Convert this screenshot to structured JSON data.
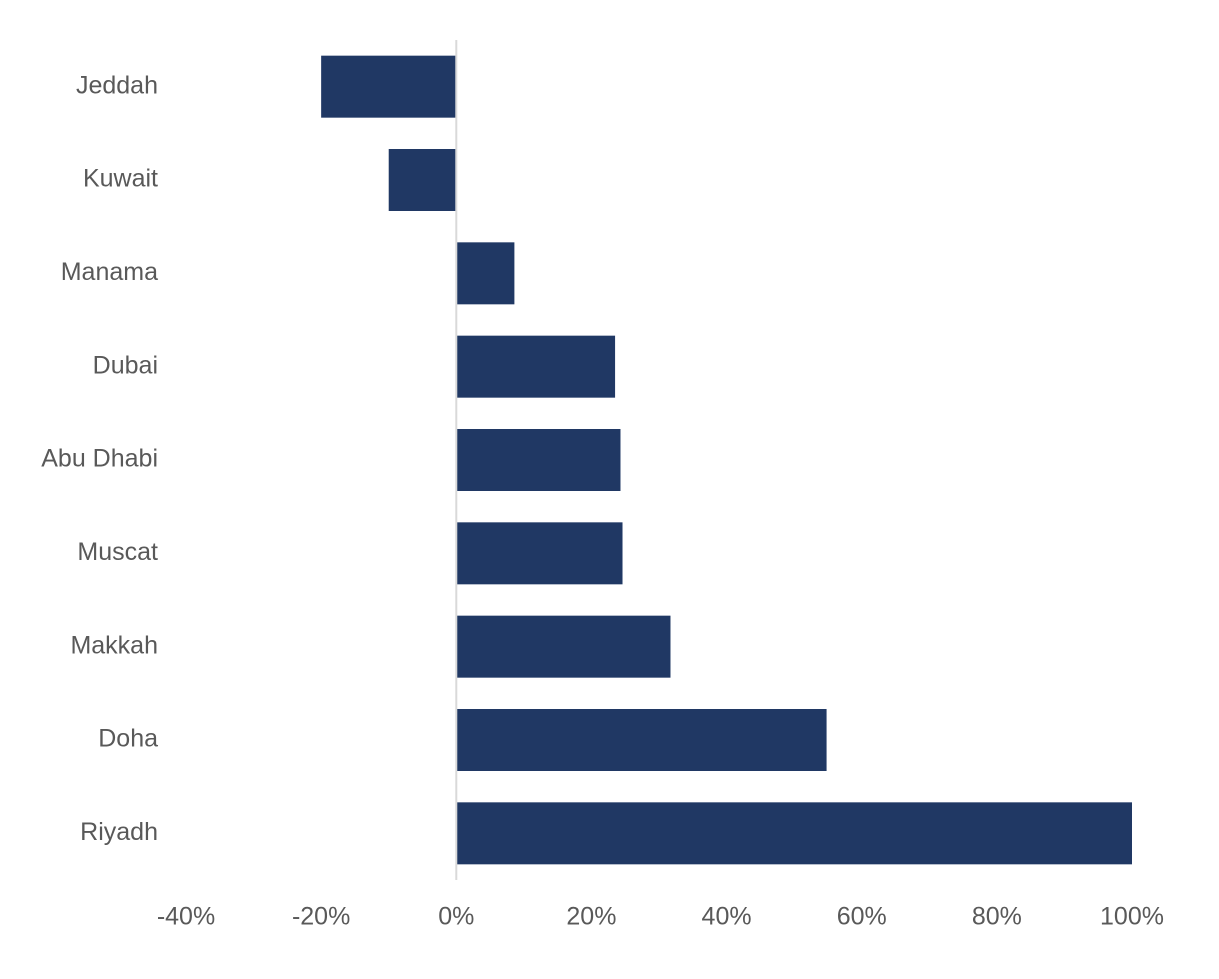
{
  "chart_data": {
    "type": "barh",
    "categories": [
      "Jeddah",
      "Kuwait",
      "Manama",
      "Dubai",
      "Abu Dhabi",
      "Muscat",
      "Makkah",
      "Doha",
      "Riyadh"
    ],
    "values": [
      -20,
      -10,
      8.6,
      23.5,
      24.3,
      24.6,
      31.7,
      54.8,
      100
    ],
    "color": "#203864",
    "xlim": [
      -40,
      100
    ],
    "xticks": [
      {
        "value": -40,
        "label": "-40%"
      },
      {
        "value": -20,
        "label": "-20%"
      },
      {
        "value": 0,
        "label": "0%"
      },
      {
        "value": 20,
        "label": "20%"
      },
      {
        "value": 40,
        "label": "40%"
      },
      {
        "value": 60,
        "label": "60%"
      },
      {
        "value": 80,
        "label": "80%"
      },
      {
        "value": 100,
        "label": "100%"
      }
    ],
    "grid": false
  }
}
